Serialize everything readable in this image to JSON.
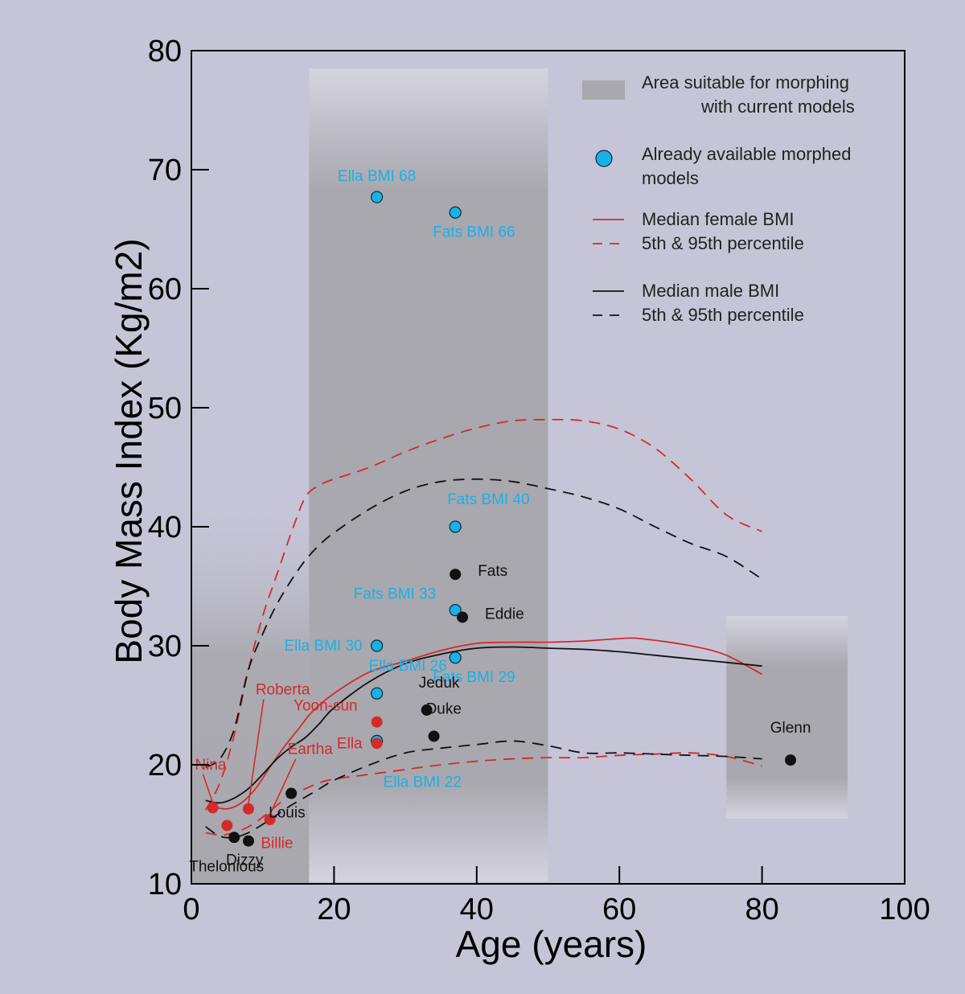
{
  "chart_data": {
    "type": "scatter",
    "title": "",
    "xlabel": "Age (years)",
    "ylabel": "Body Mass Index (Kg/m2)",
    "xlim": [
      0,
      100
    ],
    "ylim": [
      10,
      80
    ],
    "x_ticks": [
      0,
      20,
      40,
      60,
      80,
      100
    ],
    "y_ticks": [
      10,
      20,
      30,
      40,
      50,
      60,
      70,
      80
    ],
    "grid": false,
    "colors": {
      "background": "#c6c5d8",
      "female": "#d42a2a",
      "male": "#111111",
      "morphed": "#1ab0e8",
      "band_dark": "#a9a8ae",
      "band_light": "#d4d3e0"
    },
    "regions": [
      {
        "x": [
          0,
          16.5
        ],
        "y": [
          10,
          43
        ],
        "dark_from": 10,
        "dark_to": 31
      },
      {
        "x": [
          16.5,
          50
        ],
        "y": [
          10.2,
          78.5
        ],
        "dark_from": 16,
        "dark_to": 68
      },
      {
        "x": [
          75,
          92
        ],
        "y": [
          15.5,
          32.5
        ],
        "dark_from": 18.5,
        "dark_to": 28.5
      }
    ],
    "legend": {
      "position": "top-right",
      "entries": [
        {
          "kind": "area",
          "label_lines": [
            "Area suitable for morphing",
            "with current models"
          ]
        },
        {
          "kind": "marker",
          "label_lines": [
            "Already available morphed",
            "models"
          ]
        },
        {
          "kind": "line-solid",
          "color": "#d42a2a",
          "label_lines": [
            "Median female BMI"
          ]
        },
        {
          "kind": "line-dashed",
          "color": "#d42a2a",
          "label_lines": [
            "5th & 95th percentile"
          ]
        },
        {
          "kind": "line-solid",
          "color": "#111111",
          "label_lines": [
            "Median male BMI"
          ]
        },
        {
          "kind": "line-dashed",
          "color": "#111111",
          "label_lines": [
            "5th & 95th percentile"
          ]
        }
      ]
    },
    "series": [
      {
        "name": "Female 95th percentile",
        "color": "#d42a2a",
        "style": "dashed",
        "x": [
          2,
          4,
          6,
          8,
          10,
          12,
          14,
          16,
          18,
          20,
          25,
          30,
          35,
          40,
          45,
          50,
          55,
          60,
          65,
          70,
          75,
          80
        ],
        "y": [
          16.2,
          18.5,
          22.5,
          28,
          32.5,
          36,
          39.5,
          42.5,
          43.5,
          44,
          45,
          46.3,
          47.4,
          48.3,
          48.9,
          49,
          48.9,
          48.2,
          46.6,
          44,
          41,
          39.6
        ]
      },
      {
        "name": "Male 95th percentile",
        "color": "#111111",
        "style": "dashed",
        "x": [
          2,
          4,
          6,
          8,
          10,
          12,
          14,
          16,
          18,
          20,
          25,
          30,
          35,
          40,
          45,
          50,
          55,
          60,
          65,
          70,
          75,
          80
        ],
        "y": [
          19.8,
          20.5,
          23,
          28,
          31,
          33.5,
          35.5,
          37.2,
          38.5,
          39.5,
          41.5,
          43,
          43.8,
          44,
          43.8,
          43.2,
          42.5,
          41.5,
          40,
          38.6,
          37.5,
          35.6
        ]
      },
      {
        "name": "Female median BMI",
        "color": "#d42a2a",
        "style": "solid",
        "x": [
          3,
          5,
          7,
          9,
          11,
          13,
          15,
          17,
          20,
          25,
          30,
          35,
          40,
          45,
          50,
          55,
          60,
          63,
          70,
          75,
          80
        ],
        "y": [
          16.5,
          16.3,
          16.8,
          18,
          19.8,
          21.5,
          23,
          24.5,
          26,
          27.8,
          28.7,
          29.6,
          30.2,
          30.3,
          30.3,
          30.4,
          30.6,
          30.6,
          30,
          29.2,
          27.6
        ]
      },
      {
        "name": "Male median BMI",
        "color": "#111111",
        "style": "solid",
        "x": [
          2,
          4,
          6,
          8,
          10,
          12,
          14,
          16,
          18,
          20,
          25,
          30,
          35,
          40,
          45,
          50,
          55,
          60,
          65,
          70,
          75,
          80
        ],
        "y": [
          17,
          16.8,
          17.2,
          18,
          19.2,
          20.5,
          21.5,
          22.3,
          23.5,
          24.8,
          27,
          28.5,
          29.3,
          29.8,
          29.9,
          29.8,
          29.7,
          29.5,
          29.2,
          28.9,
          28.6,
          28.3
        ]
      },
      {
        "name": "Female 5th percentile",
        "color": "#d42a2a",
        "style": "dashed",
        "x": [
          2,
          4,
          6,
          8,
          10,
          12,
          14,
          16,
          18,
          20,
          25,
          30,
          35,
          40,
          45,
          50,
          55,
          60,
          65,
          70,
          75,
          80
        ],
        "y": [
          14.3,
          14.1,
          14.3,
          14.8,
          15.6,
          16.6,
          17.5,
          18,
          18.5,
          18.8,
          19.2,
          19.6,
          20,
          20.3,
          20.5,
          20.6,
          20.6,
          20.8,
          20.9,
          21,
          20.7,
          19.9
        ]
      },
      {
        "name": "Male 5th percentile",
        "color": "#111111",
        "style": "dashed",
        "x": [
          2,
          4,
          6,
          8,
          10,
          12,
          14,
          16,
          18,
          20,
          25,
          30,
          35,
          40,
          45,
          50,
          55,
          60,
          65,
          70,
          75,
          80
        ],
        "y": [
          14.8,
          14,
          13.9,
          14.3,
          15,
          15.8,
          16.6,
          17.3,
          18,
          18.7,
          20,
          21,
          21.4,
          21.7,
          22,
          21.6,
          21,
          21,
          20.9,
          20.8,
          20.7,
          20.5
        ]
      }
    ],
    "points": [
      {
        "label": "Ella BMI 68",
        "x": 26,
        "y": 67.7,
        "kind": "morphed",
        "label_color": "#1ab0e8",
        "label_pos": "above"
      },
      {
        "label": "Fats BMI 66",
        "x": 37,
        "y": 66.4,
        "kind": "morphed",
        "label_color": "#1ab0e8",
        "label_pos": "below-right"
      },
      {
        "label": "Fats BMI 40",
        "x": 37,
        "y": 40,
        "kind": "morphed",
        "label_color": "#1ab0e8",
        "label_pos": "above-right"
      },
      {
        "label": "Fats BMI 33",
        "x": 37,
        "y": 33,
        "kind": "morphed",
        "label_color": "#1ab0e8",
        "label_pos": "above-left"
      },
      {
        "label": "Ella BMI 30",
        "x": 26,
        "y": 30,
        "kind": "morphed",
        "label_color": "#1ab0e8",
        "label_pos": "left"
      },
      {
        "label": "Fats BMI 29",
        "x": 37,
        "y": 29,
        "kind": "morphed",
        "label_color": "#1ab0e8",
        "label_pos": "below-right"
      },
      {
        "label": "Ella BMI 26",
        "x": 26,
        "y": 26,
        "kind": "morphed",
        "label_color": "#1ab0e8",
        "label_pos": "above-right"
      },
      {
        "label": "Ella BMI 22",
        "x": 26,
        "y": 22,
        "kind": "morphed",
        "label_color": "#1ab0e8",
        "label_pos": "far-below"
      },
      {
        "label": "Fats",
        "x": 37,
        "y": 36,
        "kind": "male",
        "label_color": "#111111",
        "label_pos": "right"
      },
      {
        "label": "Eddie",
        "x": 38,
        "y": 32.4,
        "kind": "male",
        "label_color": "#111111",
        "label_pos": "right"
      },
      {
        "label": "Jeduk",
        "x": 33,
        "y": 24.6,
        "kind": "male",
        "label_color": "#111111",
        "label_pos": "above-right"
      },
      {
        "label": "Duke",
        "x": 34,
        "y": 22.4,
        "kind": "male",
        "label_color": "#111111",
        "label_pos": "above-right"
      },
      {
        "label": "Glenn",
        "x": 84,
        "y": 20.4,
        "kind": "male",
        "label_color": "#111111",
        "label_pos": "far-above"
      },
      {
        "label": "Louis",
        "x": 14,
        "y": 17.6,
        "kind": "male",
        "label_color": "#111111",
        "label_pos": "below-right"
      },
      {
        "label": "Dizzy",
        "x": 8,
        "y": 13.6,
        "kind": "male",
        "label_color": "#111111",
        "label_pos": "below-right"
      },
      {
        "label": "Thelonious",
        "x": 6,
        "y": 13.9,
        "kind": "male",
        "label_color": "#111111",
        "label_pos": "thelonious"
      },
      {
        "label": "Yoon-sun",
        "x": 26,
        "y": 23.6,
        "kind": "female",
        "label_color": "#d42a2a",
        "label_pos": "above-left"
      },
      {
        "label": "Ella",
        "x": 26,
        "y": 21.8,
        "kind": "female",
        "label_color": "#d42a2a",
        "label_pos": "left"
      },
      {
        "label": "Roberta",
        "x": 8,
        "y": 16.3,
        "kind": "female",
        "label_color": "#d42a2a",
        "label_pos": "leader",
        "label_at": [
          9,
          25.9
        ]
      },
      {
        "label": "Eartha",
        "x": 11,
        "y": 15.4,
        "kind": "female",
        "label_color": "#d42a2a",
        "label_pos": "leader",
        "label_at": [
          13.5,
          20.9
        ]
      },
      {
        "label": "Nina",
        "x": 3,
        "y": 16.4,
        "kind": "female",
        "label_color": "#d42a2a",
        "label_pos": "leader",
        "label_at": [
          0.5,
          19.6
        ]
      },
      {
        "label": "Billie",
        "x": 5,
        "y": 14.9,
        "kind": "female",
        "label_color": "#d42a2a",
        "label_pos": "below-far-right"
      }
    ]
  }
}
